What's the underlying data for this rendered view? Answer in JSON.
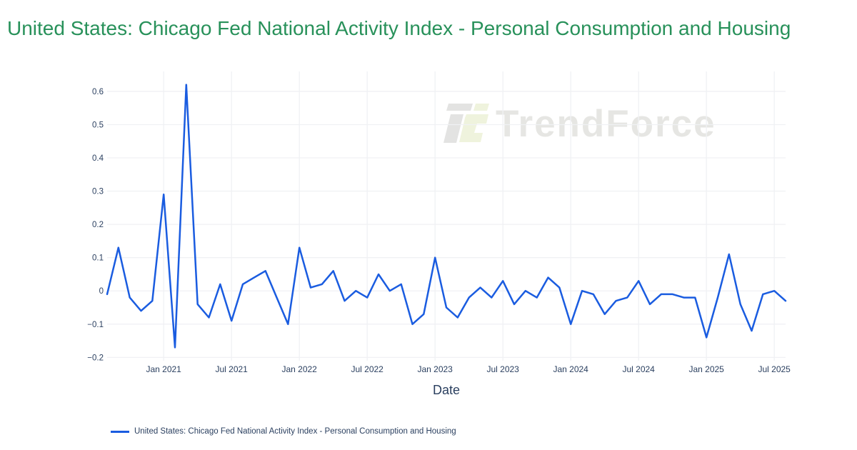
{
  "chart_data": {
    "type": "line",
    "title": "United States: Chicago Fed National Activity Index - Personal Consumption and Housing",
    "title_color": "#28915a",
    "xlabel": "Date",
    "ylabel": "",
    "x": [
      "Aug 2020",
      "Sep 2020",
      "Oct 2020",
      "Nov 2020",
      "Dec 2020",
      "Jan 2021",
      "Feb 2021",
      "Mar 2021",
      "Apr 2021",
      "May 2021",
      "Jun 2021",
      "Jul 2021",
      "Aug 2021",
      "Sep 2021",
      "Oct 2021",
      "Nov 2021",
      "Dec 2021",
      "Jan 2022",
      "Feb 2022",
      "Mar 2022",
      "Apr 2022",
      "May 2022",
      "Jun 2022",
      "Jul 2022",
      "Aug 2022",
      "Sep 2022",
      "Oct 2022",
      "Nov 2022",
      "Dec 2022",
      "Jan 2023",
      "Feb 2023",
      "Mar 2023",
      "Apr 2023",
      "May 2023",
      "Jun 2023",
      "Jul 2023",
      "Aug 2023",
      "Sep 2023",
      "Oct 2023",
      "Nov 2023",
      "Dec 2023",
      "Jan 2024",
      "Feb 2024",
      "Mar 2024",
      "Apr 2024",
      "May 2024",
      "Jun 2024",
      "Jul 2024",
      "Aug 2024",
      "Sep 2024",
      "Oct 2024",
      "Nov 2024",
      "Dec 2024",
      "Jan 2025",
      "Feb 2025",
      "Mar 2025",
      "Apr 2025",
      "May 2025",
      "Jun 2025",
      "Jul 2025",
      "Aug 2025"
    ],
    "series": [
      {
        "name": "United States: Chicago Fed National Activity Index - Personal Consumption and Housing",
        "color": "#1a5ce0",
        "values": [
          -0.01,
          0.13,
          -0.02,
          -0.06,
          -0.03,
          0.29,
          -0.17,
          0.62,
          -0.04,
          -0.08,
          0.02,
          -0.09,
          0.02,
          0.04,
          0.06,
          -0.02,
          -0.1,
          0.13,
          0.01,
          0.02,
          0.06,
          -0.03,
          0.0,
          -0.02,
          0.05,
          0.0,
          0.02,
          -0.1,
          -0.07,
          0.1,
          -0.05,
          -0.08,
          -0.02,
          0.01,
          -0.02,
          0.03,
          -0.04,
          0.0,
          -0.02,
          0.04,
          0.01,
          -0.1,
          0.0,
          -0.01,
          -0.07,
          -0.03,
          -0.02,
          0.03,
          -0.04,
          -0.01,
          -0.01,
          -0.02,
          -0.02,
          -0.14,
          -0.02,
          0.11,
          -0.04,
          -0.12,
          -0.01,
          0.0,
          -0.03
        ]
      }
    ],
    "x_tick_labels": [
      "Jan 2021",
      "Jul 2021",
      "Jan 2022",
      "Jul 2022",
      "Jan 2023",
      "Jul 2023",
      "Jan 2024",
      "Jul 2024",
      "Jan 2025",
      "Jul 2025"
    ],
    "x_tick_indices": [
      5,
      11,
      17,
      23,
      29,
      35,
      41,
      47,
      53,
      59
    ],
    "y_tick_values": [
      -0.2,
      -0.1,
      0,
      0.1,
      0.2,
      0.3,
      0.4,
      0.5,
      0.6
    ],
    "y_tick_labels": [
      "−0.2",
      "−0.1",
      "0",
      "0.1",
      "0.2",
      "0.3",
      "0.4",
      "0.5",
      "0.6"
    ],
    "ylim": [
      -0.21,
      0.66
    ],
    "grid": true,
    "grid_color": "#f0f1f4",
    "axis_text_color": "#2a3f5f",
    "legend_position": "bottom-left"
  },
  "watermark": {
    "text": "TrendForce",
    "text_color": "#e6e6e3",
    "logo_gray": "#e3e3e2",
    "logo_green": "#eff3dd"
  }
}
